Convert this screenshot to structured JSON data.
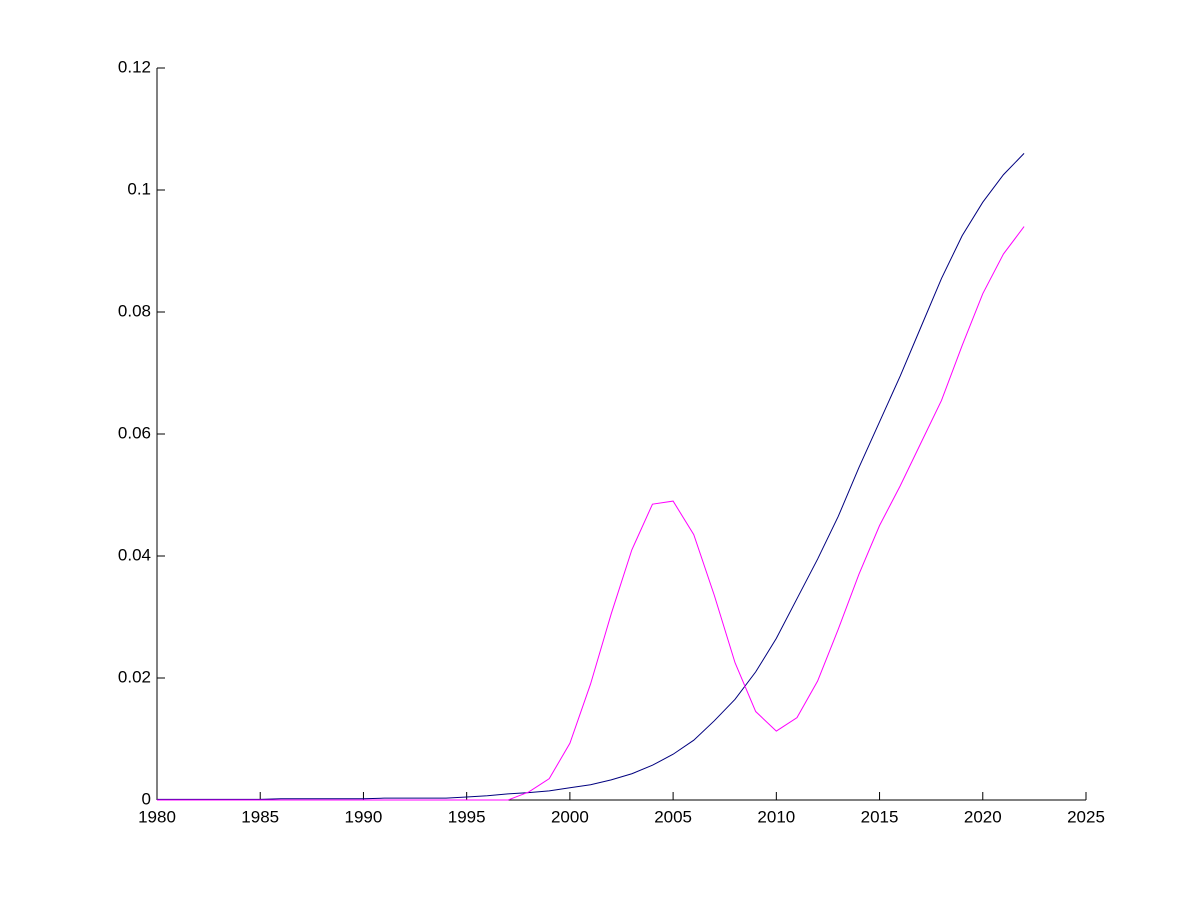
{
  "chart_data": {
    "type": "line",
    "x": [
      1980,
      1981,
      1982,
      1983,
      1984,
      1985,
      1986,
      1987,
      1988,
      1989,
      1990,
      1991,
      1992,
      1993,
      1994,
      1995,
      1996,
      1997,
      1998,
      1999,
      2000,
      2001,
      2002,
      2003,
      2004,
      2005,
      2006,
      2007,
      2008,
      2009,
      2010,
      2011,
      2012,
      2013,
      2014,
      2015,
      2016,
      2017,
      2018,
      2019,
      2020,
      2021,
      2022
    ],
    "series": [
      {
        "color": "#00007f",
        "values": [
          0.0001,
          0.0001,
          0.0001,
          0.0001,
          0.0001,
          0.0001,
          0.0002,
          0.0002,
          0.0002,
          0.0002,
          0.0002,
          0.0003,
          0.0003,
          0.0003,
          0.0003,
          0.0005,
          0.0007,
          0.001,
          0.0012,
          0.0015,
          0.002,
          0.0025,
          0.0033,
          0.0043,
          0.0057,
          0.0075,
          0.0098,
          0.013,
          0.0165,
          0.021,
          0.0265,
          0.033,
          0.0395,
          0.0465,
          0.0545,
          0.062,
          0.0695,
          0.0775,
          0.0855,
          0.0925,
          0.098,
          0.1025,
          0.106
        ]
      },
      {
        "color": "#ff00ff",
        "values": [
          0,
          0,
          0,
          0,
          0,
          0,
          0,
          0,
          0,
          0,
          0,
          0,
          0,
          0,
          0,
          0,
          0,
          0,
          0.0013,
          0.0035,
          0.0093,
          0.019,
          0.0305,
          0.041,
          0.0485,
          0.049,
          0.0435,
          0.0335,
          0.0225,
          0.0145,
          0.0113,
          0.0135,
          0.0195,
          0.028,
          0.037,
          0.045,
          0.0515,
          0.0585,
          0.0655,
          0.0745,
          0.083,
          0.0895,
          0.094
        ]
      }
    ],
    "xlim": [
      1980,
      2025
    ],
    "xticks": [
      1980,
      1985,
      1990,
      1995,
      2000,
      2005,
      2010,
      2015,
      2020,
      2025
    ],
    "ylim": [
      0,
      0.12
    ],
    "yticks": [
      0,
      0.02,
      0.04,
      0.06,
      0.08,
      0.1,
      0.12
    ],
    "grid": false
  }
}
